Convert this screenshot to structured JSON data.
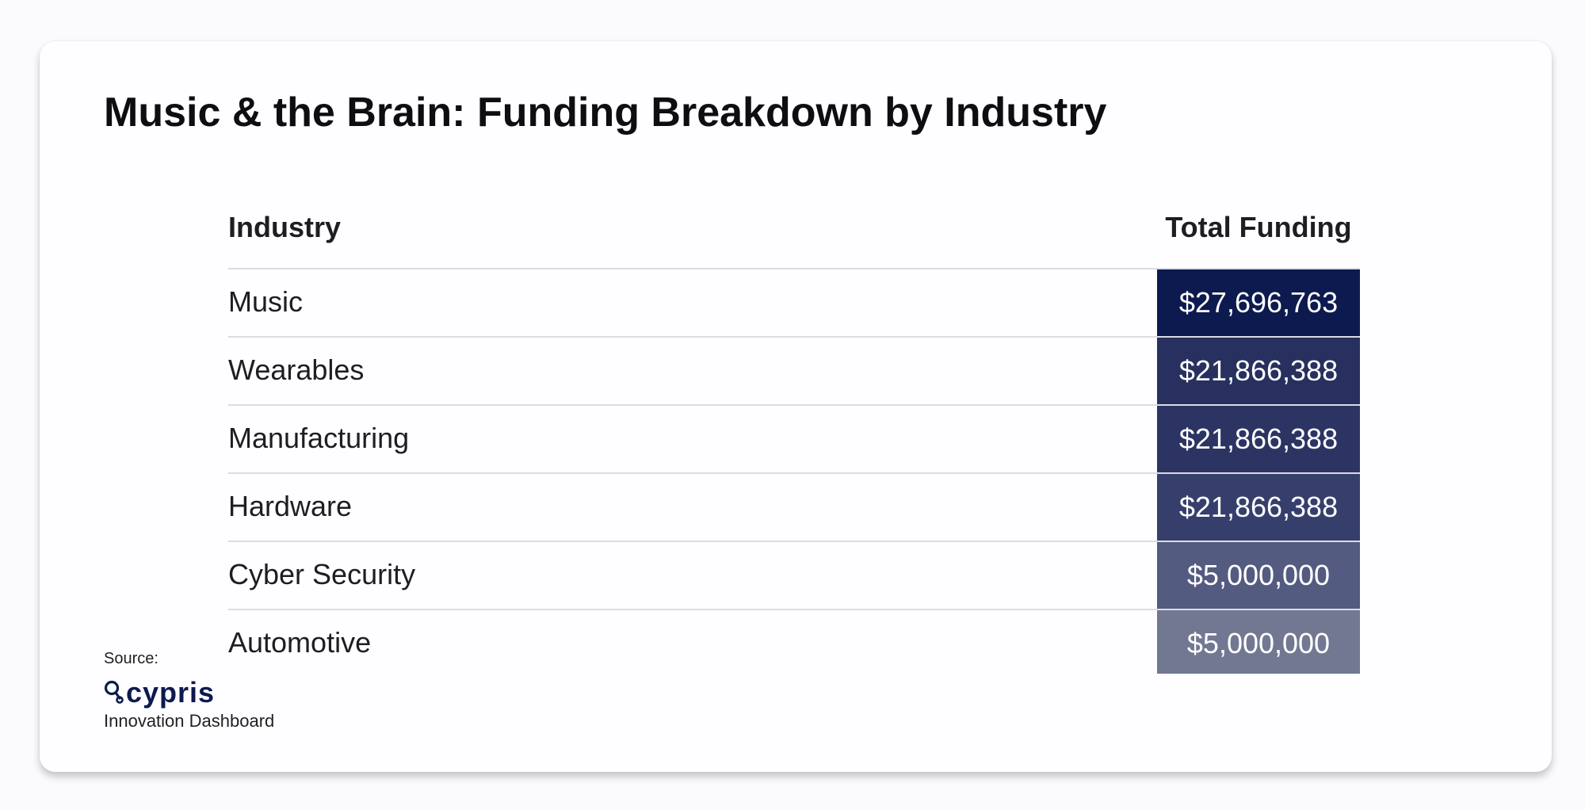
{
  "title": "Music & the Brain: Funding Breakdown by Industry",
  "chart_data": {
    "type": "table",
    "title": "Music & the Brain: Funding Breakdown by Industry",
    "columns": [
      "Industry",
      "Total Funding"
    ],
    "rows": [
      {
        "industry": "Music",
        "funding": "$27,696,763",
        "value": 27696763,
        "color": "#0d1a4f"
      },
      {
        "industry": "Wearables",
        "funding": "$21,866,388",
        "value": 21866388,
        "color": "#27305e"
      },
      {
        "industry": "Manufacturing",
        "funding": "$21,866,388",
        "value": 21866388,
        "color": "#2c3463"
      },
      {
        "industry": "Hardware",
        "funding": "$21,866,388",
        "value": 21866388,
        "color": "#363f6c"
      },
      {
        "industry": "Cyber Security",
        "funding": "$5,000,000",
        "value": 5000000,
        "color": "#545b80"
      },
      {
        "industry": "Automotive",
        "funding": "$5,000,000",
        "value": 5000000,
        "color": "#727892"
      }
    ]
  },
  "footer": {
    "source_label": "Source:",
    "logo_text": "cypris",
    "dashboard_label": "Innovation Dashboard"
  }
}
